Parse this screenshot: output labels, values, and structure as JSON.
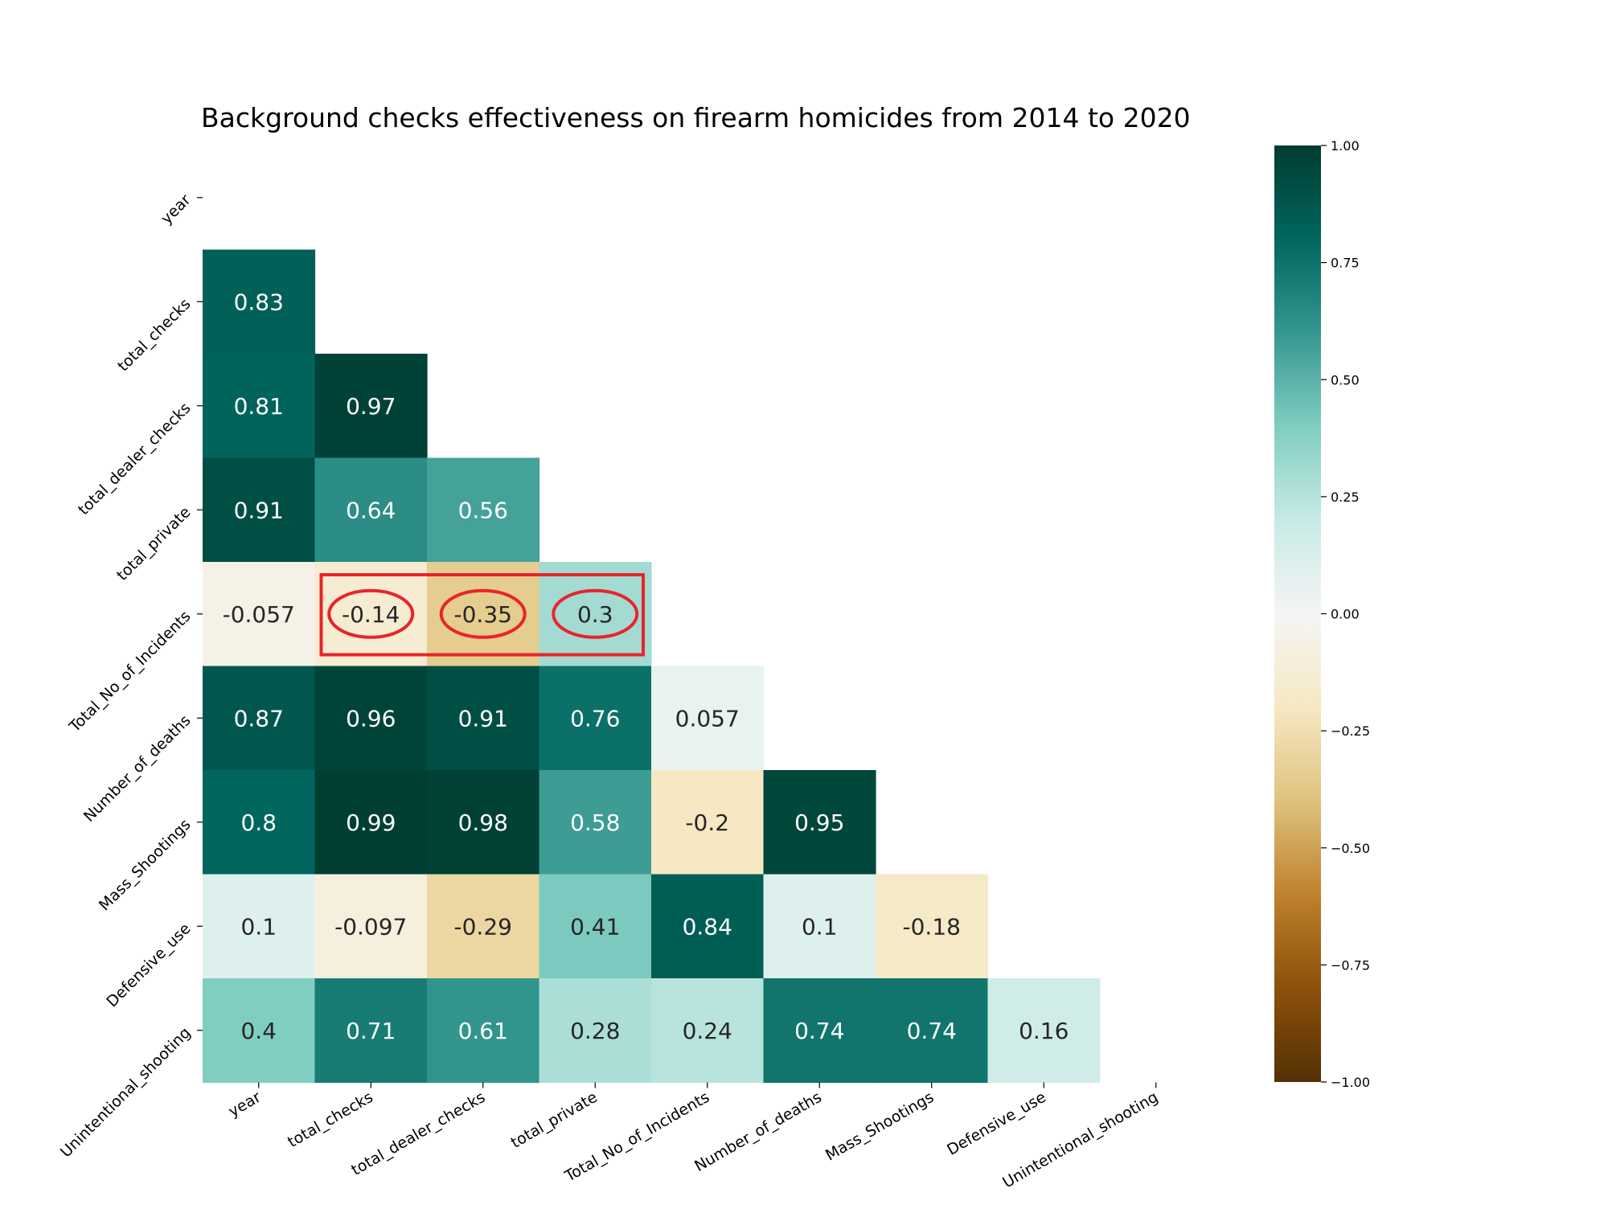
{
  "chart_data": {
    "type": "heatmap",
    "title": "Background checks effectiveness on firearm homicides from 2014 to 2020",
    "variables": [
      "year",
      "total_checks",
      "total_dealer_checks",
      "total_private",
      "Total_No_of_Incidents",
      "Number_of_deaths",
      "Mass_Shootings",
      "Defensive_use",
      "Unintentional_shooting"
    ],
    "mask": "upper-triangle-including-diagonal",
    "cells": [
      [
        null,
        null,
        null,
        null,
        null,
        null,
        null,
        null,
        null
      ],
      [
        0.83,
        null,
        null,
        null,
        null,
        null,
        null,
        null,
        null
      ],
      [
        0.81,
        0.97,
        null,
        null,
        null,
        null,
        null,
        null,
        null
      ],
      [
        0.91,
        0.64,
        0.56,
        null,
        null,
        null,
        null,
        null,
        null
      ],
      [
        -0.057,
        -0.14,
        -0.35,
        0.3,
        null,
        null,
        null,
        null,
        null
      ],
      [
        0.87,
        0.96,
        0.91,
        0.76,
        0.057,
        null,
        null,
        null,
        null
      ],
      [
        0.8,
        0.99,
        0.98,
        0.58,
        -0.2,
        0.95,
        null,
        null,
        null
      ],
      [
        0.1,
        -0.097,
        -0.29,
        0.41,
        0.84,
        0.1,
        -0.18,
        null,
        null
      ],
      [
        0.4,
        0.71,
        0.61,
        0.28,
        0.24,
        0.74,
        0.74,
        0.16,
        null
      ]
    ],
    "colormap": "BrBG",
    "colorbar": {
      "range": [
        -1.0,
        1.0
      ],
      "ticks": [
        1.0,
        0.75,
        0.5,
        0.25,
        0.0,
        -0.25,
        -0.5,
        -0.75,
        -1.0
      ],
      "tick_labels": [
        "1.00",
        "0.75",
        "0.50",
        "0.25",
        "0.00",
        "−0.25",
        "−0.50",
        "−0.75",
        "−1.00"
      ],
      "placement": "right"
    },
    "annotations": {
      "highlight_rectangle": {
        "row": 4,
        "from_col": 1,
        "to_col": 3,
        "color": "#e8242b"
      },
      "highlight_circles": [
        {
          "row": 4,
          "col": 1
        },
        {
          "row": 4,
          "col": 2
        },
        {
          "row": 4,
          "col": 3
        }
      ]
    }
  }
}
